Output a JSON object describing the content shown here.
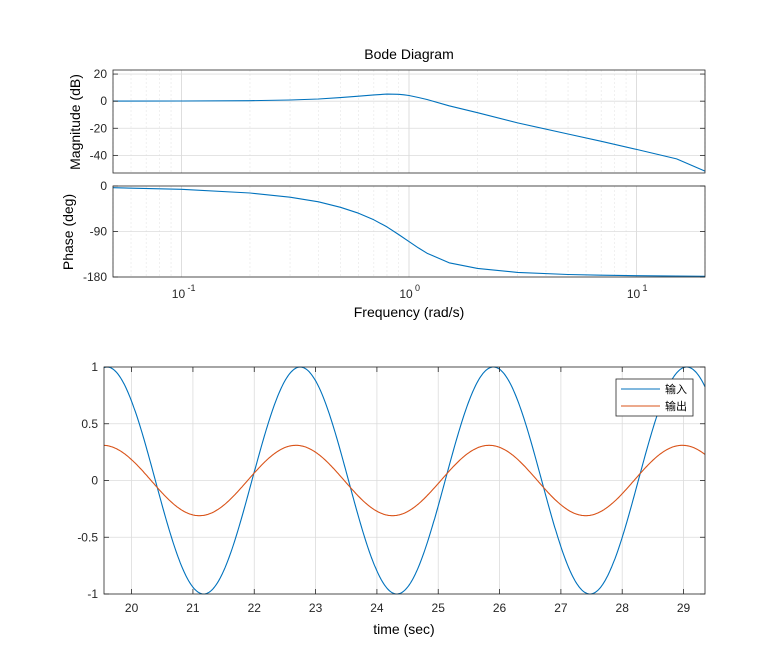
{
  "chart_data": [
    {
      "type": "line",
      "name": "bode-magnitude",
      "title": "Bode Diagram",
      "xlabel": "",
      "ylabel": "Magnitude (dB)",
      "xscale": "log",
      "xlim": [
        0.05,
        20
      ],
      "ylim": [
        -53,
        23
      ],
      "yticks": [
        20,
        0,
        -20,
        -40
      ],
      "grid": true,
      "series": [
        {
          "name": "magnitude",
          "color": "#0072BD",
          "x": [
            0.05,
            0.1,
            0.2,
            0.3,
            0.4,
            0.5,
            0.6,
            0.7,
            0.8,
            0.9,
            0.95,
            1.0,
            1.1,
            1.2,
            1.5,
            2,
            3,
            5,
            7,
            10,
            15,
            20
          ],
          "y": [
            0.02,
            0.09,
            0.37,
            0.87,
            1.6,
            2.6,
            3.7,
            4.6,
            5.2,
            5.1,
            4.7,
            4.2,
            2.7,
            1.2,
            -3.4,
            -8.5,
            -16.0,
            -24.2,
            -29.6,
            -35.6,
            -42.6,
            -51.6
          ]
        }
      ]
    },
    {
      "type": "line",
      "name": "bode-phase",
      "title": "",
      "xlabel": "Frequency  (rad/s)",
      "ylabel": "Phase (deg)",
      "xscale": "log",
      "xlim": [
        0.05,
        20
      ],
      "ylim": [
        -180,
        0
      ],
      "yticks": [
        0,
        -90,
        -180
      ],
      "xticks": [
        0.1,
        1,
        10
      ],
      "xticklabels": [
        "10",
        "10",
        "10"
      ],
      "xtick_exponents": [
        "-1",
        "0",
        "1"
      ],
      "grid": true,
      "series": [
        {
          "name": "phase",
          "color": "#0072BD",
          "x": [
            0.05,
            0.1,
            0.2,
            0.3,
            0.4,
            0.5,
            0.6,
            0.7,
            0.8,
            0.9,
            1.0,
            1.1,
            1.2,
            1.5,
            2,
            3,
            5,
            7,
            10,
            15,
            20
          ],
          "y": [
            -3.3,
            -6.6,
            -13.9,
            -22.1,
            -31.2,
            -42.1,
            -53.8,
            -66.9,
            -81.0,
            -96.0,
            -110.0,
            -122.5,
            -133.0,
            -152.0,
            -163.0,
            -171.0,
            -175.0,
            -176.5,
            -177.5,
            -178.3,
            -178.7
          ]
        }
      ]
    },
    {
      "type": "line",
      "name": "time-response",
      "title": "",
      "xlabel": "time (sec)",
      "ylabel": "",
      "xlim": [
        19.55,
        29.35
      ],
      "ylim": [
        -1,
        1
      ],
      "xticks": [
        20,
        21,
        22,
        23,
        24,
        25,
        26,
        27,
        28,
        29
      ],
      "yticks": [
        1,
        0.5,
        0,
        -0.5,
        -1
      ],
      "grid": true,
      "legend": "top-right",
      "series": [
        {
          "name": "输入",
          "color": "#0072BD",
          "function": "sin",
          "amplitude": 1,
          "period": 3.15,
          "peak_time": 22.75
        },
        {
          "name": "输出",
          "color": "#D95319",
          "function": "sin",
          "amplitude": 0.31,
          "period": 3.15,
          "peak_time": 22.68
        }
      ]
    }
  ]
}
